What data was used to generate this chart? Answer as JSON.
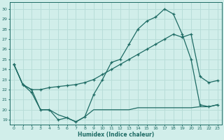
{
  "xlabel": "Humidex (Indice chaleur)",
  "bg_color": "#d1eeea",
  "grid_color": "#b8ddd8",
  "line_color": "#1e6b64",
  "xlim": [
    -0.5,
    23.5
  ],
  "ylim": [
    18.5,
    30.7
  ],
  "yticks": [
    19,
    20,
    21,
    22,
    23,
    24,
    25,
    26,
    27,
    28,
    29,
    30
  ],
  "xticks": [
    0,
    1,
    2,
    3,
    4,
    5,
    6,
    7,
    8,
    9,
    10,
    11,
    12,
    13,
    14,
    15,
    16,
    17,
    18,
    19,
    20,
    21,
    22,
    23
  ],
  "line1_x": [
    0,
    1,
    2,
    3,
    4,
    5,
    6,
    7,
    8,
    9,
    10,
    11,
    12,
    13,
    14,
    15,
    16,
    17,
    18,
    19,
    20,
    21,
    22,
    23
  ],
  "line1_y": [
    24.5,
    22.5,
    21.7,
    20.0,
    20.0,
    19.0,
    19.2,
    18.8,
    19.3,
    21.5,
    23.0,
    24.7,
    25.0,
    26.5,
    28.0,
    28.8,
    29.2,
    30.0,
    29.5,
    27.5,
    25.0,
    20.5,
    20.3,
    20.5
  ],
  "line2_x": [
    0,
    1,
    2,
    3,
    4,
    5,
    6,
    7,
    8,
    9,
    10,
    11,
    12,
    13,
    14,
    15,
    16,
    17,
    18,
    19,
    20,
    21,
    22,
    23
  ],
  "line2_y": [
    24.5,
    22.5,
    22.0,
    20.0,
    20.0,
    19.5,
    19.2,
    18.8,
    19.3,
    20.0,
    20.0,
    20.0,
    20.0,
    20.0,
    20.2,
    20.2,
    20.2,
    20.2,
    20.2,
    20.2,
    20.2,
    20.3,
    20.3,
    20.5
  ],
  "line3_x": [
    0,
    1,
    2,
    3,
    4,
    5,
    6,
    7,
    8,
    9,
    10,
    11,
    12,
    13,
    14,
    15,
    16,
    17,
    18,
    19,
    20,
    21,
    22,
    23
  ],
  "line3_y": [
    24.5,
    22.5,
    22.0,
    22.0,
    22.2,
    22.3,
    22.4,
    22.5,
    22.7,
    23.0,
    23.5,
    24.0,
    24.5,
    25.0,
    25.5,
    26.0,
    26.5,
    27.0,
    27.5,
    27.2,
    27.5,
    23.3,
    22.7,
    22.9
  ]
}
